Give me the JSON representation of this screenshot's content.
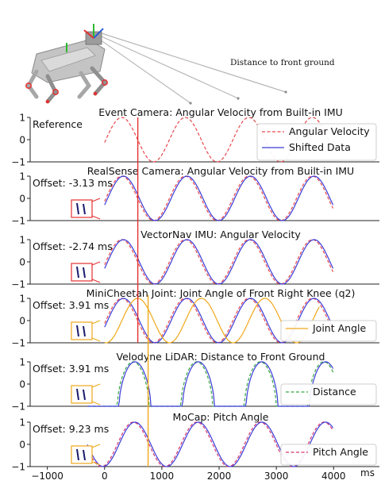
{
  "header": {
    "robot_annotation": "Distance to front ground"
  },
  "colors": {
    "reference": "#e8484d",
    "shifted": "#3b3bd6",
    "joint": "#f0a81a",
    "distance": "#36a845",
    "pitch": "#d6376f",
    "marker_red": "#e53030",
    "marker_orange": "#f0a81a"
  },
  "x_axis": {
    "ticks": [
      -1000,
      0,
      1000,
      2000,
      3000,
      4000
    ],
    "unit": "ms",
    "xlim": [
      -1300,
      4800
    ]
  },
  "markers": {
    "red_line_x": 580,
    "orange_line_x": 760
  },
  "chart_data": [
    {
      "type": "line",
      "title": "Event Camera: Angular Velocity from Built-in IMU",
      "corner_label": "Reference",
      "ylim": [
        -1,
        1
      ],
      "yticks": [
        -1,
        0,
        1
      ],
      "legend": [
        {
          "label": "Angular Velocity",
          "style": "dashed",
          "color_key": "reference"
        },
        {
          "label": "Shifted Data",
          "style": "solid",
          "color_key": "shifted"
        }
      ],
      "series": [
        {
          "name": "Angular Velocity",
          "style": "dashed",
          "color_key": "reference",
          "x_range": [
            0,
            4000
          ],
          "period_ms": 1110,
          "phase_ms": 300,
          "amplitude": 1
        }
      ]
    },
    {
      "type": "line",
      "title": "RealSense Camera: Angular Velocity from Built-in IMU",
      "corner_label": "Offset: -3.13 ms",
      "ylim": [
        -1,
        1
      ],
      "yticks": [
        -1,
        0,
        1
      ],
      "legend": [],
      "series": [
        {
          "name": "Angular Velocity",
          "style": "dashed",
          "color_key": "reference",
          "x_range": [
            0,
            4000
          ],
          "period_ms": 1110,
          "phase_ms": 300,
          "amplitude": 1
        },
        {
          "name": "Shifted Data",
          "style": "solid",
          "color_key": "shifted",
          "x_range": [
            0,
            4000
          ],
          "period_ms": 1110,
          "phase_ms": 330,
          "amplitude": 1
        }
      ]
    },
    {
      "type": "line",
      "title": "VectorNav IMU: Angular Velocity",
      "corner_label": "Offset: -2.74 ms",
      "ylim": [
        -1,
        1
      ],
      "yticks": [
        -1,
        0,
        1
      ],
      "legend": [],
      "series": [
        {
          "name": "Angular Velocity",
          "style": "dashed",
          "color_key": "reference",
          "x_range": [
            0,
            4000
          ],
          "period_ms": 1110,
          "phase_ms": 300,
          "amplitude": 1
        },
        {
          "name": "Shifted Data",
          "style": "solid",
          "color_key": "shifted",
          "x_range": [
            0,
            4000
          ],
          "period_ms": 1110,
          "phase_ms": 330,
          "amplitude": 1
        }
      ]
    },
    {
      "type": "line",
      "title": "MiniCheetah Joint: Joint Angle of Front Right Knee (q2)",
      "corner_label": "Offset: 3.91 ms",
      "ylim": [
        -1,
        1
      ],
      "yticks": [
        -1,
        0,
        1
      ],
      "legend": [
        {
          "label": "Joint Angle",
          "style": "solid",
          "color_key": "joint"
        }
      ],
      "series": [
        {
          "name": "Angular Velocity",
          "style": "dashed",
          "color_key": "reference",
          "x_range": [
            0,
            4000
          ],
          "period_ms": 1110,
          "phase_ms": 300,
          "amplitude": 1
        },
        {
          "name": "Shifted Data",
          "style": "solid",
          "color_key": "shifted",
          "x_range": [
            0,
            4000
          ],
          "period_ms": 1110,
          "phase_ms": 330,
          "amplitude": 1
        },
        {
          "name": "Joint Angle",
          "style": "solid",
          "color_key": "joint",
          "x_range": [
            0,
            3750
          ],
          "period_ms": 1110,
          "phase_ms": 580,
          "amplitude": 1
        }
      ]
    },
    {
      "type": "line",
      "title": "Velodyne LiDAR: Distance to Front Ground",
      "corner_label": "Offset: 3.91 ms",
      "ylim": [
        -1,
        1
      ],
      "yticks": [
        -1,
        0,
        1
      ],
      "legend": [
        {
          "label": "Distance",
          "style": "dashed",
          "color_key": "distance"
        }
      ],
      "series": [
        {
          "name": "Distance",
          "style": "dashed",
          "color_key": "distance",
          "x_range": [
            -300,
            4000
          ],
          "period_ms": 1110,
          "phase_ms": 500,
          "amplitude": 1,
          "pulse": true
        },
        {
          "name": "Shifted Data",
          "style": "solid",
          "color_key": "shifted",
          "x_range": [
            -300,
            4000
          ],
          "period_ms": 1110,
          "phase_ms": 530,
          "amplitude": 1,
          "pulse": true
        }
      ]
    },
    {
      "type": "line",
      "title": "MoCap: Pitch Angle",
      "corner_label": "Offset: 9.23 ms",
      "ylim": [
        -1,
        1
      ],
      "yticks": [
        -1,
        0,
        1
      ],
      "legend": [
        {
          "label": "Pitch Angle",
          "style": "dashed",
          "color_key": "pitch"
        }
      ],
      "series": [
        {
          "name": "Pitch Angle",
          "style": "dashed",
          "color_key": "pitch",
          "x_range": [
            -300,
            4000
          ],
          "period_ms": 1110,
          "phase_ms": 500,
          "amplitude": 1
        },
        {
          "name": "Shifted Data",
          "style": "solid",
          "color_key": "shifted",
          "x_range": [
            -300,
            4000
          ],
          "period_ms": 1110,
          "phase_ms": 530,
          "amplitude": 1
        }
      ]
    }
  ]
}
